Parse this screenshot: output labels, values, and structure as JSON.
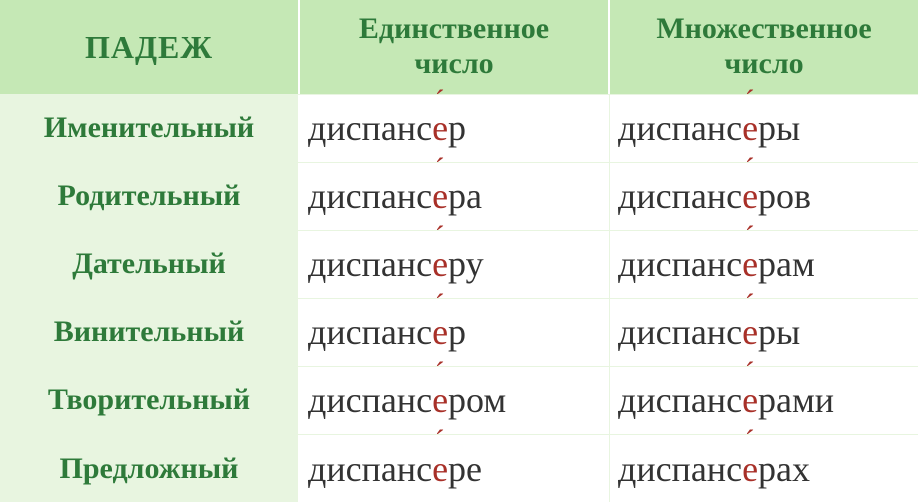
{
  "colors": {
    "header_bg": "#c5e8b5",
    "header_text": "#2e7a3a",
    "case_bg": "#e8f5e0",
    "case_text": "#2e7a3a",
    "cell_bg": "#ffffff",
    "word_text": "#333333",
    "stress_color": "#a83028",
    "grid_line": "#e8f5e0"
  },
  "typography": {
    "header_case_fontsize": 32,
    "header_col_fontsize": 30,
    "case_label_fontsize": 30,
    "word_fontsize": 36,
    "font_family": "Times New Roman"
  },
  "layout": {
    "col_case_width": 300,
    "col_sing_width": 310,
    "row_count": 7
  },
  "headers": {
    "case": "ПАДЕЖ",
    "singular_line1": "Единственное",
    "singular_line2": "число",
    "plural_line1": "Множественное",
    "plural_line2": "число"
  },
  "rows": [
    {
      "case": "Именительный",
      "singular": {
        "pre": "диспанс",
        "stress": "е",
        "post": "р"
      },
      "plural": {
        "pre": "диспанс",
        "stress": "е",
        "post": "ры"
      }
    },
    {
      "case": "Родительный",
      "singular": {
        "pre": "диспанс",
        "stress": "е",
        "post": "ра"
      },
      "plural": {
        "pre": "диспанс",
        "stress": "е",
        "post": "ров"
      }
    },
    {
      "case": "Дательный",
      "singular": {
        "pre": "диспанс",
        "stress": "е",
        "post": "ру"
      },
      "plural": {
        "pre": "диспанс",
        "stress": "е",
        "post": "рам"
      }
    },
    {
      "case": "Винительный",
      "singular": {
        "pre": "диспанс",
        "stress": "е",
        "post": "р"
      },
      "plural": {
        "pre": "диспанс",
        "stress": "е",
        "post": "ры"
      }
    },
    {
      "case": "Творительный",
      "singular": {
        "pre": "диспанс",
        "stress": "е",
        "post": "ром"
      },
      "plural": {
        "pre": "диспанс",
        "stress": "е",
        "post": "рами"
      }
    },
    {
      "case": "Предложный",
      "singular": {
        "pre": "диспанс",
        "stress": "е",
        "post": "ре"
      },
      "plural": {
        "pre": "диспанс",
        "stress": "е",
        "post": "рах"
      }
    }
  ]
}
